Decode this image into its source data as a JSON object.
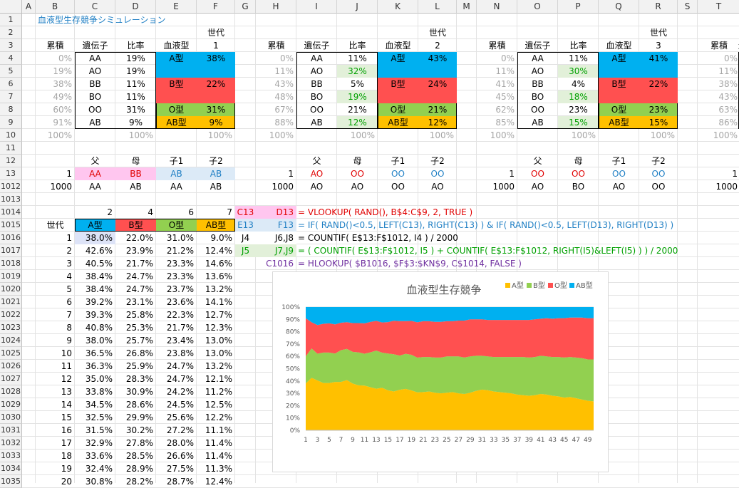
{
  "sheet": {
    "columns": [
      "A",
      "B",
      "C",
      "D",
      "E",
      "F",
      "G",
      "H",
      "I",
      "J",
      "K",
      "L",
      "M",
      "N",
      "O",
      "P",
      "Q",
      "R",
      "S",
      "T"
    ],
    "rows": [
      "1",
      "2",
      "3",
      "4",
      "5",
      "6",
      "7",
      "8",
      "9",
      "10",
      "11",
      "12",
      "13",
      "1012",
      "1013",
      "1014",
      "1015",
      "1016",
      "1017",
      "1018",
      "1019",
      "1020",
      "1021",
      "1022",
      "1023",
      "1024",
      "1025",
      "1026",
      "1027",
      "1028",
      "1029",
      "1030",
      "1031",
      "1032",
      "1033",
      "1034",
      "1035"
    ]
  },
  "title": "血液型生存競争シミュレーション",
  "labels": {
    "generation": "世代",
    "cumulative": "累積",
    "gene": "遺伝子",
    "ratio": "比率",
    "blood_type": "血液型",
    "father": "父",
    "mother": "母",
    "child1": "子1",
    "child2": "子2",
    "partial_gene": "遺"
  },
  "generations": [
    {
      "gen": "1",
      "cumulative": [
        "0%",
        "19%",
        "38%",
        "49%",
        "60%",
        "91%",
        "100%"
      ],
      "genes": [
        "AA",
        "AO",
        "BB",
        "BO",
        "OO",
        "AB"
      ],
      "ratios": [
        "19%",
        "19%",
        "11%",
        "11%",
        "31%",
        "9%",
        "100%"
      ],
      "types": [
        {
          "name": "A型",
          "pct": "38%"
        },
        {
          "name": "B型",
          "pct": "22%"
        },
        {
          "name": "O型",
          "pct": "31%"
        },
        {
          "name": "AB型",
          "pct": "9%"
        }
      ],
      "types_total": "100%",
      "parents13": {
        "idx": "1",
        "father": "AA",
        "mother": "BB",
        "child1": "AB",
        "child2": "AB"
      },
      "parents1012": {
        "idx": "1000",
        "father": "AA",
        "mother": "AB",
        "child1": "AA",
        "child2": "AB"
      }
    },
    {
      "gen": "2",
      "cumulative": [
        "0%",
        "11%",
        "43%",
        "48%",
        "67%",
        "88%",
        "100%"
      ],
      "genes": [
        "AA",
        "AO",
        "BB",
        "BO",
        "OO",
        "AB"
      ],
      "ratios": [
        "11%",
        "32%",
        "5%",
        "19%",
        "21%",
        "12%",
        "100%"
      ],
      "types": [
        {
          "name": "A型",
          "pct": "43%"
        },
        {
          "name": "B型",
          "pct": "24%"
        },
        {
          "name": "O型",
          "pct": "21%"
        },
        {
          "name": "AB型",
          "pct": "12%"
        }
      ],
      "types_total": "100%",
      "parents13": {
        "idx": "1",
        "father": "AO",
        "mother": "OO",
        "child1": "OO",
        "child2": "OO"
      },
      "parents1012": {
        "idx": "1000",
        "father": "AO",
        "mother": "AO",
        "child1": "OO",
        "child2": "AO"
      }
    },
    {
      "gen": "3",
      "cumulative": [
        "0%",
        "11%",
        "41%",
        "45%",
        "62%",
        "85%",
        "100%"
      ],
      "genes": [
        "AA",
        "AO",
        "BB",
        "BO",
        "OO",
        "AB"
      ],
      "ratios": [
        "11%",
        "30%",
        "4%",
        "18%",
        "23%",
        "15%",
        "100%"
      ],
      "types": [
        {
          "name": "A型",
          "pct": "41%"
        },
        {
          "name": "B型",
          "pct": "22%"
        },
        {
          "name": "O型",
          "pct": "23%"
        },
        {
          "name": "AB型",
          "pct": "15%"
        }
      ],
      "types_total": "100%",
      "parents13": {
        "idx": "1",
        "father": "OO",
        "mother": "OO",
        "child1": "OO",
        "child2": "OO"
      },
      "parents1012": {
        "idx": "1000",
        "father": "AO",
        "mother": "BO",
        "child1": "AO",
        "child2": "OO"
      }
    }
  ],
  "gen4_partial": {
    "cumulative": [
      "0%",
      "11%",
      "38%",
      "43%",
      "63%",
      "86%",
      "100%"
    ],
    "idx13": "1",
    "idx1012": "1000"
  },
  "row1014": {
    "a": "2",
    "b": "4",
    "o": "6",
    "ab": "7"
  },
  "row1015": {
    "label": "世代",
    "a": "A型",
    "b": "B型",
    "o": "O型",
    "ab": "AB型"
  },
  "history": [
    [
      "1",
      "38.0%",
      "22.0%",
      "31.0%",
      "9.0%"
    ],
    [
      "2",
      "42.6%",
      "23.9%",
      "21.2%",
      "12.4%"
    ],
    [
      "3",
      "40.5%",
      "21.7%",
      "23.3%",
      "14.6%"
    ],
    [
      "4",
      "38.4%",
      "24.7%",
      "23.3%",
      "13.6%"
    ],
    [
      "5",
      "38.4%",
      "24.7%",
      "23.7%",
      "13.2%"
    ],
    [
      "6",
      "39.2%",
      "23.1%",
      "23.6%",
      "14.1%"
    ],
    [
      "7",
      "39.3%",
      "25.8%",
      "22.3%",
      "12.7%"
    ],
    [
      "8",
      "40.8%",
      "25.3%",
      "21.7%",
      "12.3%"
    ],
    [
      "9",
      "38.0%",
      "25.7%",
      "23.4%",
      "13.0%"
    ],
    [
      "10",
      "36.5%",
      "26.8%",
      "23.8%",
      "13.0%"
    ],
    [
      "11",
      "36.3%",
      "25.9%",
      "24.7%",
      "13.2%"
    ],
    [
      "12",
      "35.0%",
      "28.3%",
      "24.7%",
      "12.1%"
    ],
    [
      "13",
      "33.8%",
      "30.9%",
      "24.2%",
      "11.2%"
    ],
    [
      "14",
      "34.5%",
      "28.6%",
      "24.5%",
      "12.5%"
    ],
    [
      "15",
      "32.5%",
      "29.9%",
      "25.6%",
      "12.2%"
    ],
    [
      "16",
      "31.5%",
      "30.2%",
      "27.2%",
      "11.1%"
    ],
    [
      "17",
      "32.9%",
      "27.8%",
      "28.0%",
      "11.4%"
    ],
    [
      "18",
      "33.6%",
      "28.5%",
      "26.6%",
      "11.4%"
    ],
    [
      "19",
      "32.4%",
      "28.9%",
      "27.5%",
      "11.3%"
    ],
    [
      "20",
      "30.8%",
      "28.2%",
      "28.7%",
      "12.4%"
    ]
  ],
  "formulas": [
    {
      "ref": "C13",
      "ref2": "D13",
      "text": "= VLOOKUP( RAND(), B$4:C$9, 2, TRUE )",
      "color": "#e00000",
      "ref_bg": "#ffc6ef"
    },
    {
      "ref": "E13",
      "ref2": "F13",
      "text": "= IF( RAND()<0.5, LEFT(C13), RIGHT(C13) ) & IF( RAND()<0.5, LEFT(D13), RIGHT(D13) )",
      "color": "#1f7fc4",
      "ref_bg": "#dceaf7"
    },
    {
      "ref": "J4",
      "ref2": "J6,J8",
      "text": "= COUNTIF( E$13:F$1012, I4 ) / 2000",
      "color": "#000000",
      "ref_bg": "#ffffff"
    },
    {
      "ref": "J5",
      "ref2": "J7,J9",
      "text": "= ( COUNTIF( E$13:F$1012, I5 ) + COUNTIF( E$13:F$1012, RIGHT(I5)&LEFT(I5) ) ) / 2000",
      "color": "#00a000",
      "ref_bg": "#e2f0d9"
    },
    {
      "ref": "C1016",
      "ref2": "",
      "text": "= HLOOKUP( $B1016, $F$3:$KN$9, C$1014, FALSE )",
      "color": "#7030a0",
      "ref_bg": "#ffffff"
    }
  ],
  "colors": {
    "a": "#00b0f0",
    "b": "#ff5050",
    "o": "#92d050",
    "ab": "#ffc000",
    "a_light": "#dde3f7",
    "pink": "#ffc6ef",
    "lightblue": "#dceaf7",
    "lightgreen": "#e2f0d9"
  },
  "chart_data": {
    "type": "area",
    "title": "血液型生存競争",
    "stacked": "percent",
    "x": [
      "1",
      "2",
      "3",
      "4",
      "5",
      "6",
      "7",
      "8",
      "9",
      "10",
      "11",
      "12",
      "13",
      "14",
      "15",
      "16",
      "17",
      "18",
      "19",
      "20",
      "21",
      "22",
      "23",
      "24",
      "25",
      "26",
      "27",
      "28",
      "29",
      "30",
      "31",
      "32",
      "33",
      "34",
      "35",
      "36",
      "37",
      "38",
      "39",
      "40",
      "41",
      "42",
      "43",
      "44",
      "45",
      "46",
      "47",
      "48",
      "49",
      "50"
    ],
    "x_tick_labels": [
      "1",
      "3",
      "5",
      "7",
      "9",
      "11",
      "13",
      "15",
      "17",
      "19",
      "21",
      "23",
      "25",
      "27",
      "29",
      "31",
      "33",
      "35",
      "37",
      "39",
      "41",
      "43",
      "45",
      "47",
      "49"
    ],
    "y_tick_labels": [
      "0%",
      "10%",
      "20%",
      "30%",
      "40%",
      "50%",
      "60%",
      "70%",
      "80%",
      "90%",
      "100%"
    ],
    "ylim": [
      0,
      100
    ],
    "legend_position": "top-right",
    "series": [
      {
        "name": "A型",
        "color": "#ffc000",
        "values": [
          38,
          42.6,
          40.5,
          38.4,
          38.4,
          39.2,
          39.3,
          40.8,
          38,
          36.5,
          36.3,
          35,
          33.8,
          34.5,
          32.5,
          31.5,
          32.9,
          33.6,
          32.4,
          30.8,
          31,
          31.5,
          30.5,
          30,
          30.5,
          31,
          30,
          29.5,
          30.5,
          32,
          33,
          32.5,
          31.5,
          31,
          30.5,
          30,
          29,
          28.5,
          28,
          28.5,
          29.5,
          29,
          28,
          27.5,
          26.5,
          27,
          26,
          25,
          24,
          23.5
        ]
      },
      {
        "name": "B型",
        "color": "#92d050",
        "values": [
          22,
          23.9,
          21.7,
          24.7,
          24.7,
          23.1,
          25.8,
          25.3,
          25.7,
          26.8,
          25.9,
          28.3,
          30.9,
          28.6,
          29.9,
          30.2,
          27.8,
          28.5,
          28.9,
          28.2,
          28.5,
          28,
          28.5,
          29,
          29.5,
          29,
          30,
          29.5,
          29.5,
          28.5,
          27.5,
          27.5,
          28,
          28.5,
          29,
          29.5,
          30.5,
          31,
          31,
          31,
          31,
          31,
          31.5,
          32,
          32.5,
          32.5,
          33,
          33.5,
          33.5,
          34
        ]
      },
      {
        "name": "O型",
        "color": "#ff5050",
        "values": [
          31,
          21.2,
          23.3,
          23.3,
          23.7,
          23.6,
          22.3,
          21.7,
          23.4,
          23.8,
          24.7,
          24.7,
          24.2,
          24.5,
          25.6,
          27.2,
          28,
          26.6,
          27.5,
          28.7,
          29,
          29,
          29,
          29,
          28.5,
          28.5,
          29,
          30,
          30,
          29.5,
          29.5,
          29.5,
          30,
          30,
          30,
          30,
          30,
          30,
          30.5,
          30.5,
          30,
          31,
          31,
          31.5,
          32,
          32,
          32.5,
          33,
          33.5,
          33.5
        ]
      },
      {
        "name": "AB型",
        "color": "#00b0f0",
        "values": [
          9,
          12.4,
          14.6,
          13.6,
          13.2,
          14.1,
          12.7,
          12.3,
          13,
          13,
          13.2,
          12.1,
          11.2,
          12.5,
          12.2,
          11.1,
          11.4,
          11.4,
          11.3,
          12.4,
          11.5,
          11.5,
          12,
          12,
          11.5,
          11.5,
          11,
          11,
          10,
          10,
          10,
          10.5,
          10.5,
          10.5,
          10.5,
          10.5,
          10.5,
          10.5,
          10.5,
          10,
          9.5,
          9,
          9.5,
          9,
          9,
          8.5,
          8.5,
          8.5,
          9,
          9
        ]
      }
    ]
  }
}
